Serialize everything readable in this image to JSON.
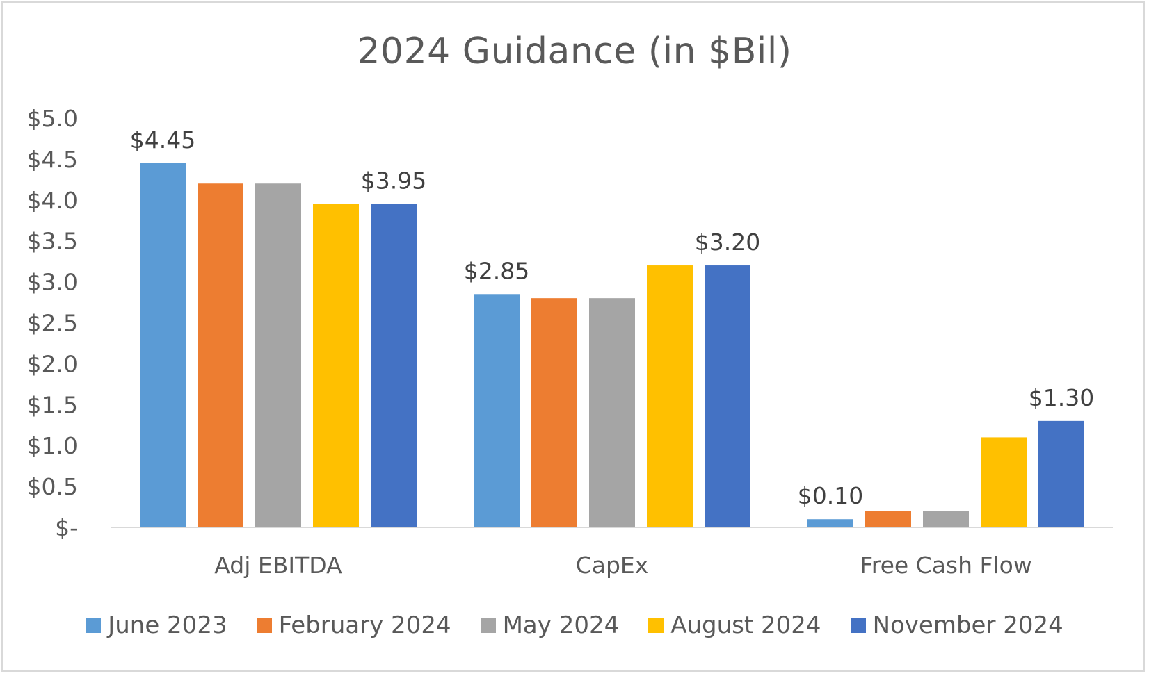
{
  "chart_data": {
    "type": "bar",
    "title": "2024 Guidance (in $Bil)",
    "xlabel": "",
    "ylabel": "",
    "ylim": [
      0,
      5.0
    ],
    "yticks": [
      {
        "value": 0,
        "label": "$-"
      },
      {
        "value": 0.5,
        "label": "$0.5"
      },
      {
        "value": 1.0,
        "label": "$1.0"
      },
      {
        "value": 1.5,
        "label": "$1.5"
      },
      {
        "value": 2.0,
        "label": "$2.0"
      },
      {
        "value": 2.5,
        "label": "$2.5"
      },
      {
        "value": 3.0,
        "label": "$3.0"
      },
      {
        "value": 3.5,
        "label": "$3.5"
      },
      {
        "value": 4.0,
        "label": "$4.0"
      },
      {
        "value": 4.5,
        "label": "$4.5"
      },
      {
        "value": 5.0,
        "label": "$5.0"
      }
    ],
    "grid": false,
    "legend_position": "bottom",
    "categories": [
      "Adj EBITDA",
      "CapEx",
      "Free Cash Flow"
    ],
    "series": [
      {
        "name": "June 2023",
        "color": "#5b9bd5",
        "values": [
          4.45,
          2.85,
          0.1
        ],
        "labels": [
          "$4.45",
          "$2.85",
          "$0.10"
        ]
      },
      {
        "name": "February 2024",
        "color": "#ed7d31",
        "values": [
          4.2,
          2.8,
          0.2
        ],
        "labels": [
          "",
          "",
          ""
        ]
      },
      {
        "name": "May 2024",
        "color": "#a5a5a5",
        "values": [
          4.2,
          2.8,
          0.2
        ],
        "labels": [
          "",
          "",
          ""
        ]
      },
      {
        "name": "August 2024",
        "color": "#ffc000",
        "values": [
          3.95,
          3.2,
          1.1
        ],
        "labels": [
          "",
          "",
          ""
        ]
      },
      {
        "name": "November 2024",
        "color": "#4472c4",
        "values": [
          3.95,
          3.2,
          1.3
        ],
        "labels": [
          "$3.95",
          "$3.20",
          "$1.30"
        ]
      }
    ]
  }
}
